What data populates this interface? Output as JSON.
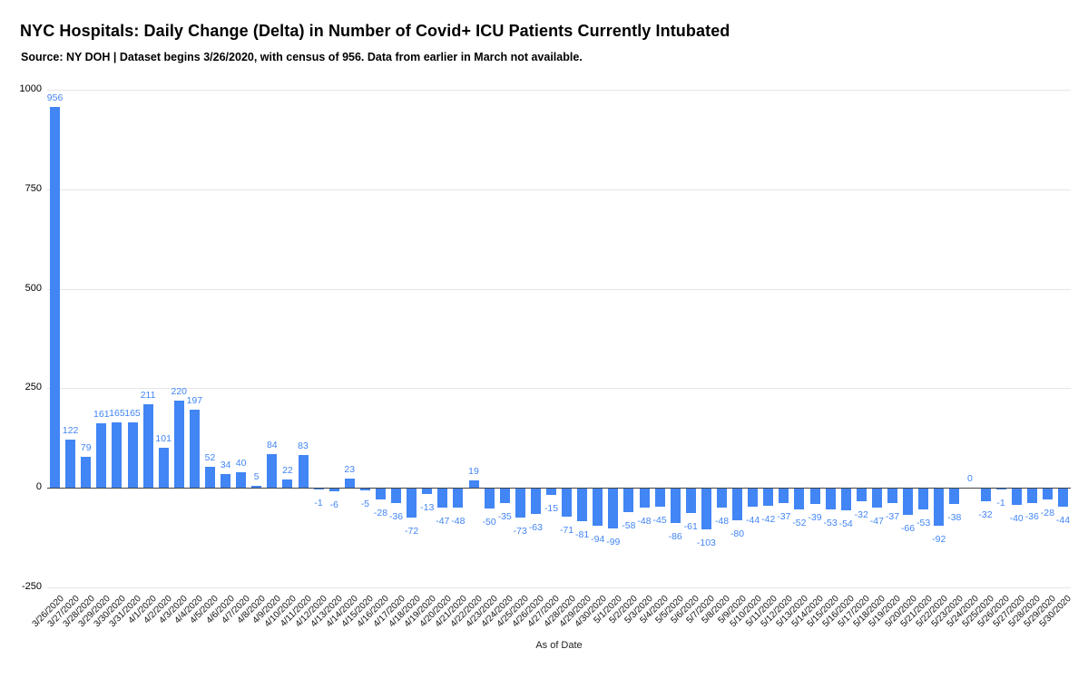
{
  "page": {
    "background": "#ffffff"
  },
  "chart_data": {
    "type": "bar",
    "title": "NYC Hospitals: Daily Change (Delta) in Number of Covid+ ICU Patients Currently Intubated",
    "subtitle": "Source: NY DOH | Dataset begins 3/26/2020, with census of 956. Data from earlier in March not available.",
    "xlabel": "As of Date",
    "ylabel": "",
    "legend": "none",
    "grid": true,
    "ylim": [
      -250,
      1000
    ],
    "y_ticks": [
      -250,
      0,
      250,
      500,
      750,
      1000
    ],
    "bar_color": "#4285f4",
    "label_color": "#4285f4",
    "gridline_color": "#e6e6e6",
    "baseline_color": "#424242",
    "axis_text_color": "#000000",
    "categories": [
      "3/26/2020",
      "3/27/2020",
      "3/28/2020",
      "3/29/2020",
      "3/30/2020",
      "3/31/2020",
      "4/1/2020",
      "4/2/2020",
      "4/3/2020",
      "4/4/2020",
      "4/5/2020",
      "4/6/2020",
      "4/7/2020",
      "4/8/2020",
      "4/9/2020",
      "4/10/2020",
      "4/11/2020",
      "4/12/2020",
      "4/13/2020",
      "4/14/2020",
      "4/15/2020",
      "4/16/2020",
      "4/17/2020",
      "4/18/2020",
      "4/19/2020",
      "4/20/2020",
      "4/21/2020",
      "4/22/2020",
      "4/23/2020",
      "4/24/2020",
      "4/25/2020",
      "4/26/2020",
      "4/27/2020",
      "4/28/2020",
      "4/29/2020",
      "4/30/2020",
      "5/1/2020",
      "5/2/2020",
      "5/3/2020",
      "5/4/2020",
      "5/5/2020",
      "5/6/2020",
      "5/7/2020",
      "5/8/2020",
      "5/9/2020",
      "5/10/2020",
      "5/11/2020",
      "5/12/2020",
      "5/13/2020",
      "5/14/2020",
      "5/15/2020",
      "5/16/2020",
      "5/17/2020",
      "5/18/2020",
      "5/19/2020",
      "5/20/2020",
      "5/21/2020",
      "5/22/2020",
      "5/23/2020",
      "5/24/2020",
      "5/25/2020",
      "5/26/2020",
      "5/27/2020",
      "5/28/2020",
      "5/29/2020",
      "5/30/2020"
    ],
    "values": [
      956,
      122,
      79,
      161,
      165,
      165,
      211,
      101,
      220,
      197,
      52,
      34,
      40,
      5,
      84,
      22,
      83,
      -1,
      -6,
      23,
      -5,
      -28,
      -36,
      -72,
      -13,
      -47,
      -48,
      19,
      -50,
      -35,
      -73,
      -63,
      -15,
      -71,
      -81,
      -94,
      -99,
      -58,
      -48,
      -45,
      -86,
      -61,
      -103,
      -48,
      -80,
      -44,
      -42,
      -37,
      -52,
      -39,
      -53,
      -54,
      -32,
      -47,
      -37,
      -66,
      -53,
      -92,
      -38,
      0,
      -32,
      -1,
      -40,
      -36,
      -28,
      -44
    ]
  }
}
